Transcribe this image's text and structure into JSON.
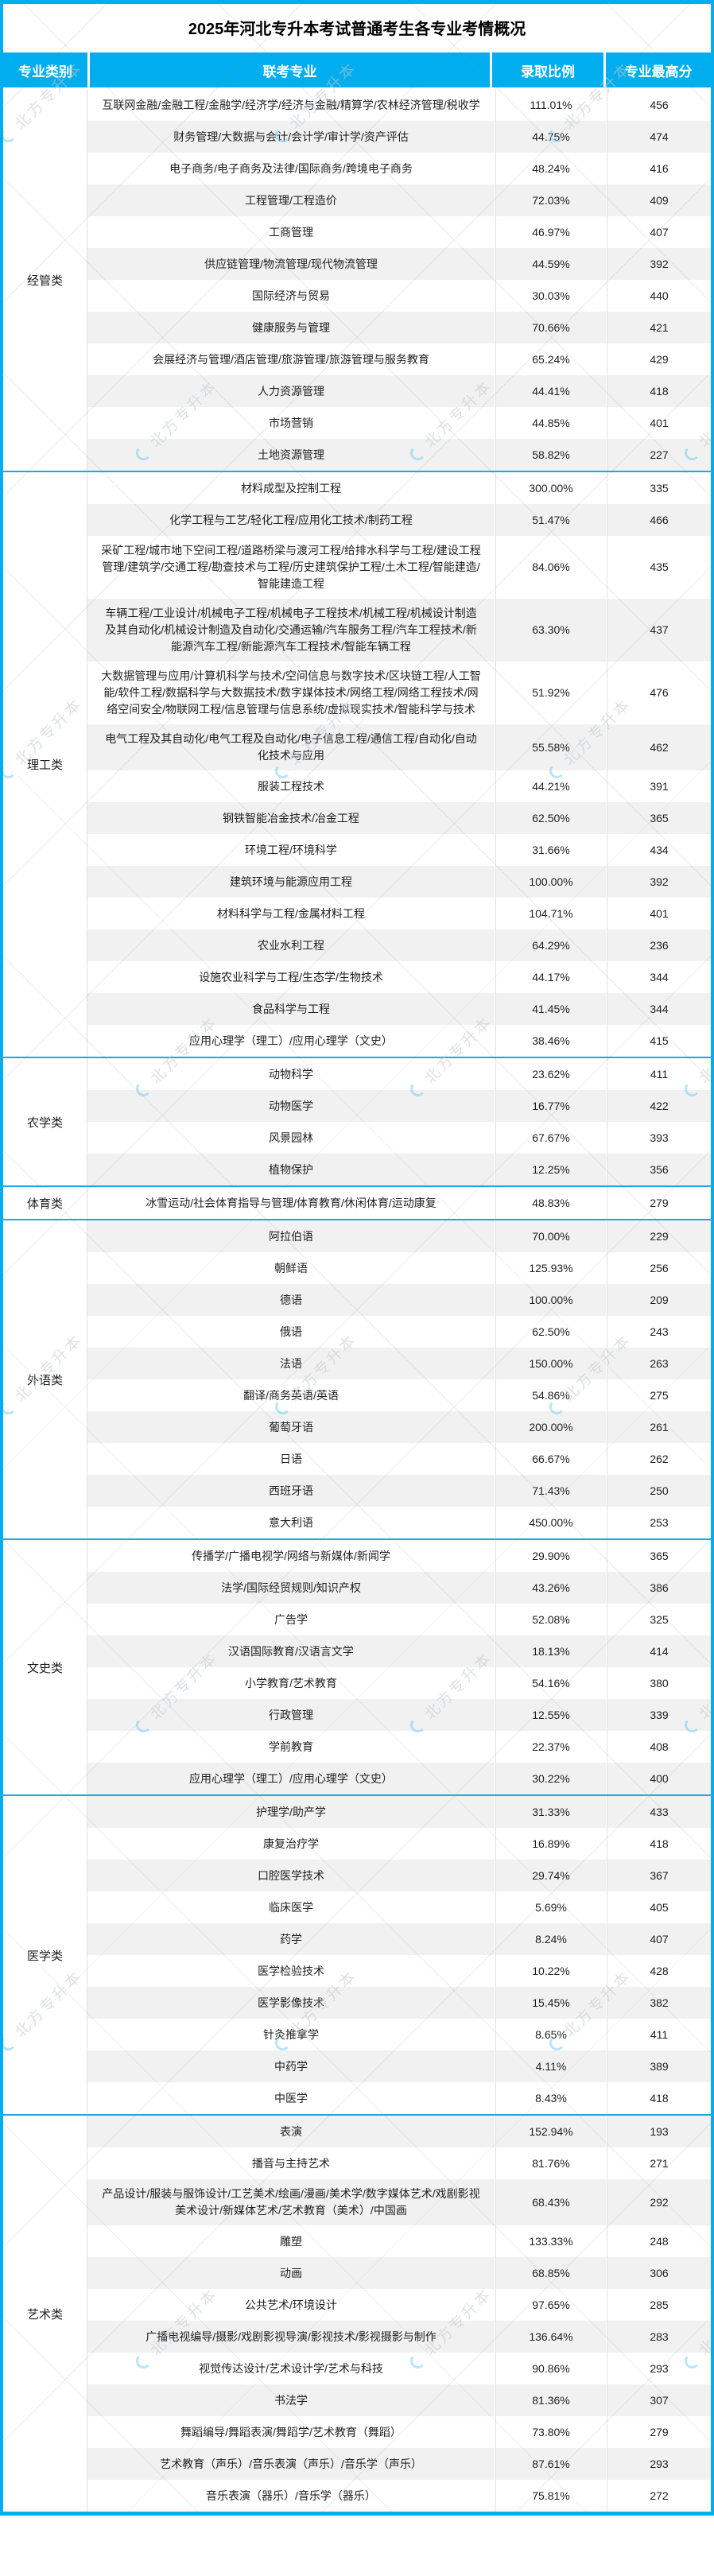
{
  "watermark": {
    "text": "北方专升本"
  },
  "colors": {
    "accent": "#00AEEF",
    "section_divider": "#19A9E8",
    "stripe": "#F1F1F1",
    "header_text": "#FFFFFF",
    "body_text": "#1F1F1F"
  },
  "chart_data": {
    "type": "table",
    "title": "2025年河北专升本考试普通考生各专业考情概况",
    "columns": [
      "专业类别",
      "联考专业",
      "录取比例",
      "专业最高分"
    ],
    "sections": [
      {
        "category": "经管类",
        "zebra_start": "white",
        "rows": [
          [
            "互联网金融/金融工程/金融学/经济学/经济与金融/精算学/农林经济管理/税收学",
            "111.01%",
            "456"
          ],
          [
            "财务管理/大数据与会计/会计学/审计学/资产评估",
            "44.75%",
            "474"
          ],
          [
            "电子商务/电子商务及法律/国际商务/跨境电子商务",
            "48.24%",
            "416"
          ],
          [
            "工程管理/工程造价",
            "72.03%",
            "409"
          ],
          [
            "工商管理",
            "46.97%",
            "407"
          ],
          [
            "供应链管理/物流管理/现代物流管理",
            "44.59%",
            "392"
          ],
          [
            "国际经济与贸易",
            "30.03%",
            "440"
          ],
          [
            "健康服务与管理",
            "70.66%",
            "421"
          ],
          [
            "会展经济与管理/酒店管理/旅游管理/旅游管理与服务教育",
            "65.24%",
            "429"
          ],
          [
            "人力资源管理",
            "44.41%",
            "418"
          ],
          [
            "市场营销",
            "44.85%",
            "401"
          ],
          [
            "土地资源管理",
            "58.82%",
            "227"
          ]
        ]
      },
      {
        "category": "理工类",
        "zebra_start": "white",
        "rows": [
          [
            "材料成型及控制工程",
            "300.00%",
            "335"
          ],
          [
            "化学工程与工艺/轻化工程/应用化工技术/制药工程",
            "51.47%",
            "466"
          ],
          [
            "采矿工程/城市地下空间工程/道路桥梁与渡河工程/给排水科学与工程/建设工程管理/建筑学/交通工程/勘查技术与工程/历史建筑保护工程/土木工程/智能建造/智能建造工程",
            "84.06%",
            "435"
          ],
          [
            "车辆工程/工业设计/机械电子工程/机械电子工程技术/机械工程/机械设计制造及其自动化/机械设计制造及自动化/交通运输/汽车服务工程/汽车工程技术/新能源汽车工程/新能源汽车工程技术/智能车辆工程",
            "63.30%",
            "437"
          ],
          [
            "大数据管理与应用/计算机科学与技术/空间信息与数字技术/区块链工程/人工智能/软件工程/数据科学与大数据技术/数字媒体技术/网络工程/网络工程技术/网络空间安全/物联网工程/信息管理与信息系统/虚拟现实技术/智能科学与技术",
            "51.92%",
            "476"
          ],
          [
            "电气工程及其自动化/电气工程及自动化/电子信息工程/通信工程/自动化/自动化技术与应用",
            "55.58%",
            "462"
          ],
          [
            "服装工程技术",
            "44.21%",
            "391"
          ],
          [
            "钢铁智能冶金技术/冶金工程",
            "62.50%",
            "365"
          ],
          [
            "环境工程/环境科学",
            "31.66%",
            "434"
          ],
          [
            "建筑环境与能源应用工程",
            "100.00%",
            "392"
          ],
          [
            "材料科学与工程/金属材料工程",
            "104.71%",
            "401"
          ],
          [
            "农业水利工程",
            "64.29%",
            "236"
          ],
          [
            "设施农业科学与工程/生态学/生物技术",
            "44.17%",
            "344"
          ],
          [
            "食品科学与工程",
            "41.45%",
            "344"
          ],
          [
            "应用心理学（理工）/应用心理学（文史）",
            "38.46%",
            "415"
          ]
        ]
      },
      {
        "category": "农学类",
        "zebra_start": "white",
        "rows": [
          [
            "动物科学",
            "23.62%",
            "411"
          ],
          [
            "动物医学",
            "16.77%",
            "422"
          ],
          [
            "风景园林",
            "67.67%",
            "393"
          ],
          [
            "植物保护",
            "12.25%",
            "356"
          ]
        ]
      },
      {
        "category": "体育类",
        "zebra_start": "white",
        "rows": [
          [
            "冰雪运动/社会体育指导与管理/体育教育/休闲体育/运动康复",
            "48.83%",
            "279"
          ]
        ]
      },
      {
        "category": "外语类",
        "zebra_start": "gray",
        "rows": [
          [
            "阿拉伯语",
            "70.00%",
            "229"
          ],
          [
            "朝鲜语",
            "125.93%",
            "256"
          ],
          [
            "德语",
            "100.00%",
            "209"
          ],
          [
            "俄语",
            "62.50%",
            "243"
          ],
          [
            "法语",
            "150.00%",
            "263"
          ],
          [
            "翻译/商务英语/英语",
            "54.86%",
            "275"
          ],
          [
            "葡萄牙语",
            "200.00%",
            "261"
          ],
          [
            "日语",
            "66.67%",
            "262"
          ],
          [
            "西班牙语",
            "71.43%",
            "250"
          ],
          [
            "意大利语",
            "450.00%",
            "253"
          ]
        ]
      },
      {
        "category": "文史类",
        "zebra_start": "white",
        "rows": [
          [
            "传播学/广播电视学/网络与新媒体/新闻学",
            "29.90%",
            "365"
          ],
          [
            "法学/国际经贸规则/知识产权",
            "43.26%",
            "386"
          ],
          [
            "广告学",
            "52.08%",
            "325"
          ],
          [
            "汉语国际教育/汉语言文学",
            "18.13%",
            "414"
          ],
          [
            "小学教育/艺术教育",
            "54.16%",
            "380"
          ],
          [
            "行政管理",
            "12.55%",
            "339"
          ],
          [
            "学前教育",
            "22.37%",
            "408"
          ],
          [
            "应用心理学（理工）/应用心理学（文史）",
            "30.22%",
            "400"
          ]
        ]
      },
      {
        "category": "医学类",
        "zebra_start": "gray",
        "rows": [
          [
            "护理学/助产学",
            "31.33%",
            "433"
          ],
          [
            "康复治疗学",
            "16.89%",
            "418"
          ],
          [
            "口腔医学技术",
            "29.74%",
            "367"
          ],
          [
            "临床医学",
            "5.69%",
            "405"
          ],
          [
            "药学",
            "8.24%",
            "407"
          ],
          [
            "医学检验技术",
            "10.22%",
            "428"
          ],
          [
            "医学影像技术",
            "15.45%",
            "382"
          ],
          [
            "针灸推拿学",
            "8.65%",
            "411"
          ],
          [
            "中药学",
            "4.11%",
            "389"
          ],
          [
            "中医学",
            "8.43%",
            "418"
          ]
        ]
      },
      {
        "category": "艺术类",
        "zebra_start": "gray",
        "rows": [
          [
            "表演",
            "152.94%",
            "193"
          ],
          [
            "播音与主持艺术",
            "81.76%",
            "271"
          ],
          [
            "产品设计/服装与服饰设计/工艺美术/绘画/漫画/美术学/数字媒体艺术/戏剧影视美术设计/新媒体艺术/艺术教育（美术）/中国画",
            "68.43%",
            "292"
          ],
          [
            "雕塑",
            "133.33%",
            "248"
          ],
          [
            "动画",
            "68.85%",
            "306"
          ],
          [
            "公共艺术/环境设计",
            "97.65%",
            "285"
          ],
          [
            "广播电视编导/摄影/戏剧影视导演/影视技术/影视摄影与制作",
            "136.64%",
            "283"
          ],
          [
            "视觉传达设计/艺术设计学/艺术与科技",
            "90.86%",
            "293"
          ],
          [
            "书法学",
            "81.36%",
            "307"
          ],
          [
            "舞蹈编导/舞蹈表演/舞蹈学/艺术教育（舞蹈）",
            "73.80%",
            "279"
          ],
          [
            "艺术教育（声乐）/音乐表演（声乐）/音乐学（声乐）",
            "87.61%",
            "293"
          ],
          [
            "音乐表演（器乐）/音乐学（器乐）",
            "75.81%",
            "272"
          ]
        ]
      }
    ]
  }
}
